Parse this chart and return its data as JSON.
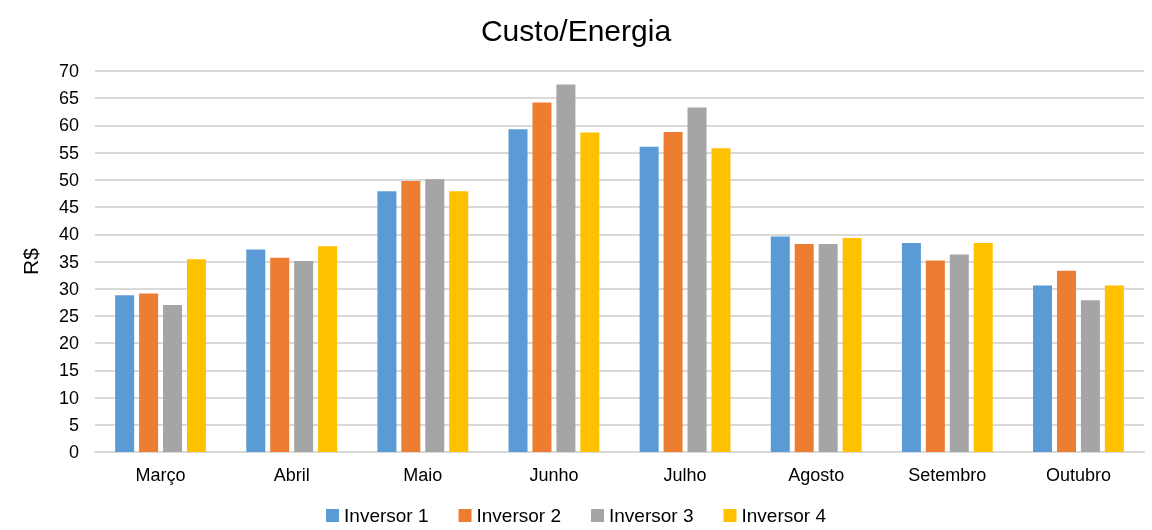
{
  "chart_data": {
    "type": "bar",
    "title": "Custo/Energia",
    "ylabel": "R$",
    "categories": [
      "Março",
      "Abril",
      "Maio",
      "Junho",
      "Julho",
      "Agosto",
      "Setembro",
      "Outubro"
    ],
    "series": [
      {
        "name": "Inversor 1",
        "color": "#5b9bd5",
        "values": [
          28.8,
          37.2,
          47.9,
          59.3,
          56.1,
          39.6,
          38.4,
          30.6
        ]
      },
      {
        "name": "Inversor 2",
        "color": "#ed7d31",
        "values": [
          29.1,
          35.7,
          49.8,
          64.2,
          58.8,
          38.2,
          35.2,
          33.3
        ]
      },
      {
        "name": "Inversor 3",
        "color": "#a5a5a5",
        "values": [
          27.0,
          35.1,
          50.1,
          67.5,
          63.3,
          38.2,
          36.3,
          27.9
        ]
      },
      {
        "name": "Inversor 4",
        "color": "#ffc000",
        "values": [
          35.4,
          37.8,
          47.9,
          58.7,
          55.8,
          39.3,
          38.4,
          30.6
        ]
      }
    ],
    "ylim": [
      0,
      70
    ],
    "yticks": [
      0,
      5,
      10,
      15,
      20,
      25,
      30,
      35,
      40,
      45,
      50,
      55,
      60,
      65,
      70
    ],
    "grid": "y",
    "legend": "bottom"
  }
}
